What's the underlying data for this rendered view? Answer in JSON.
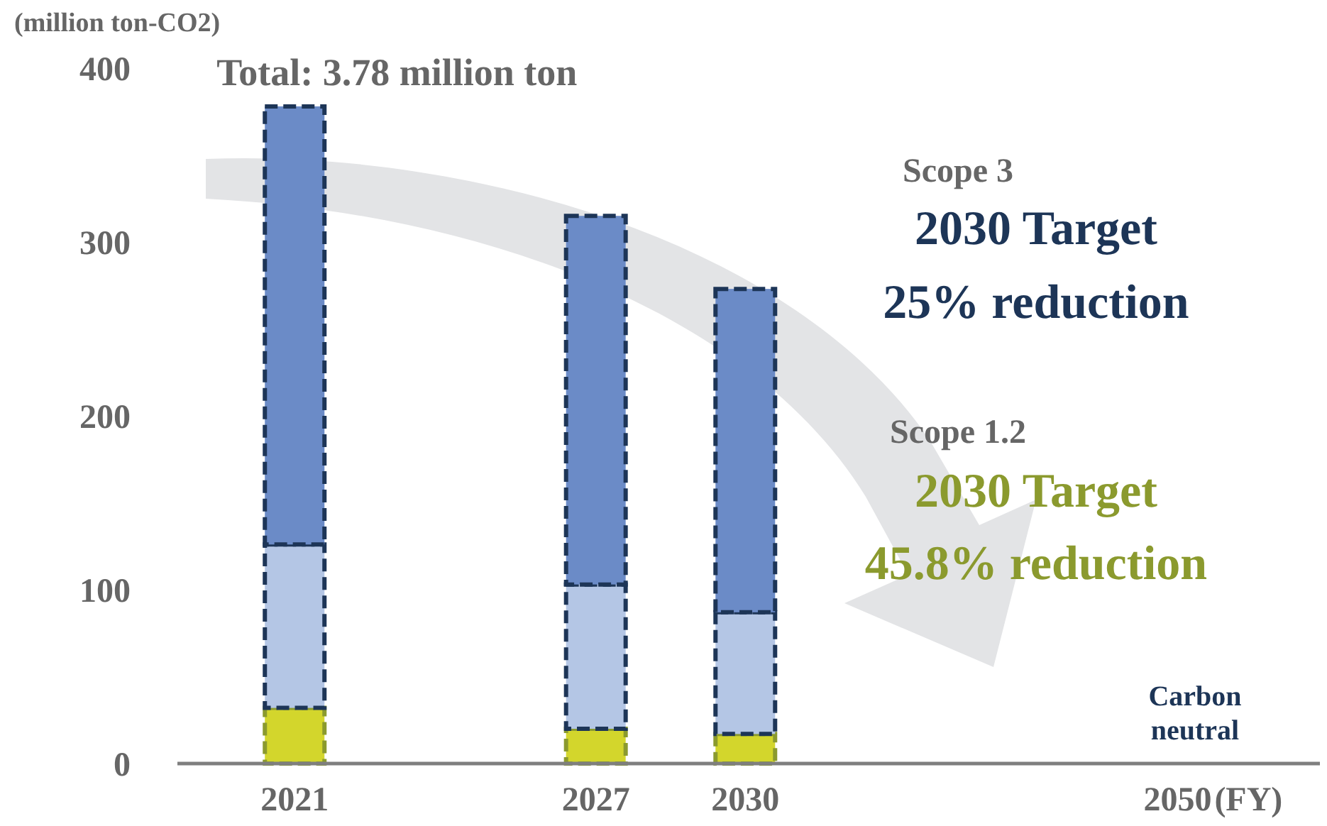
{
  "chart_data": {
    "type": "bar",
    "stacked": true,
    "ylabel": "(million ton-CO2)",
    "xlabel": "(FY)",
    "categories": [
      "2021",
      "2027",
      "2030",
      "2050"
    ],
    "series": [
      {
        "color": "#d3d62c",
        "values": [
          32,
          20,
          17,
          0
        ]
      },
      {
        "color": "#b4c6e5",
        "values": [
          94,
          83,
          70,
          0
        ]
      },
      {
        "color": "#6b8bc7",
        "values": [
          252,
          212,
          186,
          0
        ]
      }
    ],
    "ylim": [
      0,
      400
    ],
    "yticks": [
      0,
      100,
      200,
      300,
      400
    ],
    "grid": false,
    "annotations": [
      {
        "text": "Total: 3.78 million ton",
        "x": "2021",
        "y": 378
      },
      "Scope 3",
      "2030 Target",
      "25% reduction",
      "Scope 1.2",
      "2030 Target",
      "45.8% reduction",
      "Carbon neutral"
    ]
  }
}
